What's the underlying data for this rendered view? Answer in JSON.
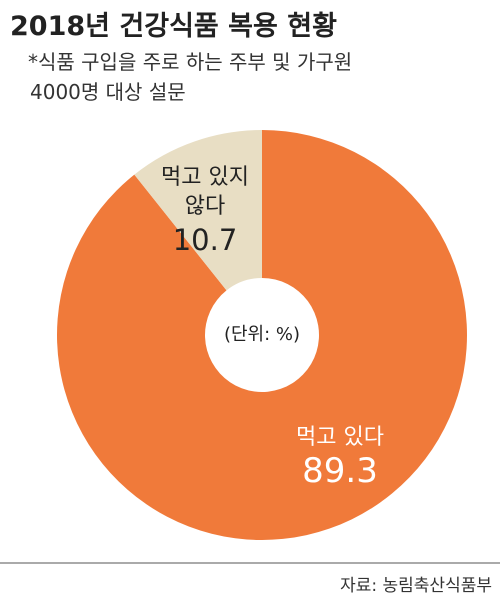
{
  "chart_data": {
    "type": "donut",
    "title": "2018년 건강식품 복용 현황",
    "subtitle": [
      "*식품 구입을 주로 하는 주부 및 가구원",
      "4000명 대상 설문"
    ],
    "center_label": "(단위: %)",
    "categories": [
      "먹고 있다",
      "먹고 있지 않다"
    ],
    "values": [
      89.3,
      10.7
    ],
    "colors": [
      "#F07A3A",
      "#E8DEC4"
    ],
    "source": "자료: 농림축산식품부"
  }
}
